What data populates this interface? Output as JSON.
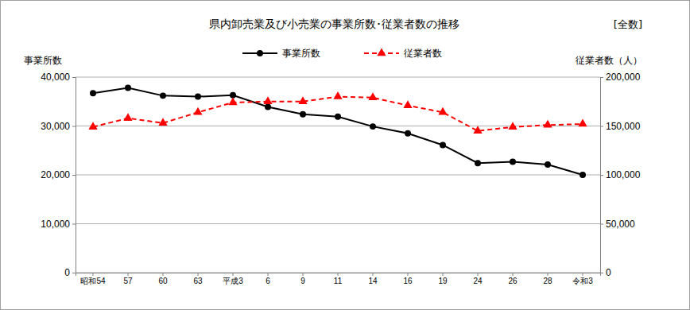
{
  "chart_data": {
    "type": "line",
    "title": "県内卸売業及び小売業の事業所数･従業者数の推移",
    "annotation": "[全数]",
    "y_label": "事業所数",
    "y2_label": "従業者数（人）",
    "categories": [
      "昭和54",
      "57",
      "60",
      "63",
      "平成3",
      "6",
      "9",
      "11",
      "14",
      "16",
      "19",
      "24",
      "26",
      "28",
      "令和3"
    ],
    "series": [
      {
        "name": "事業所数",
        "color": "#000000",
        "marker": "circle",
        "line_style": "solid",
        "axis": "y",
        "values": [
          36700,
          37800,
          36200,
          36000,
          36300,
          33900,
          32400,
          31900,
          29900,
          28500,
          26100,
          22400,
          22700,
          22100,
          20000
        ]
      },
      {
        "name": "従業者数",
        "color": "#ff0000",
        "marker": "triangle",
        "line_style": "dashed",
        "axis": "y2",
        "values": [
          149000,
          158000,
          153000,
          164000,
          174000,
          175000,
          175000,
          180000,
          179000,
          171000,
          164000,
          145000,
          149000,
          151000,
          152000
        ]
      }
    ],
    "ylim": [
      0,
      40000
    ],
    "yticks": [
      0,
      {
        "value": 10000,
        "label": "10,000"
      },
      {
        "value": 20000,
        "label": "20,000"
      },
      {
        "value": 30000,
        "label": "30,000"
      },
      {
        "value": 40000,
        "label": "40,000"
      }
    ],
    "y2lim": [
      0,
      200000
    ],
    "y2ticks": [
      0,
      {
        "value": 50000,
        "label": "50,000"
      },
      {
        "value": 100000,
        "label": "100,000"
      },
      {
        "value": 150000,
        "label": "150,000"
      },
      {
        "value": 200000,
        "label": "200,000"
      }
    ],
    "grid": true,
    "legend": "top"
  }
}
